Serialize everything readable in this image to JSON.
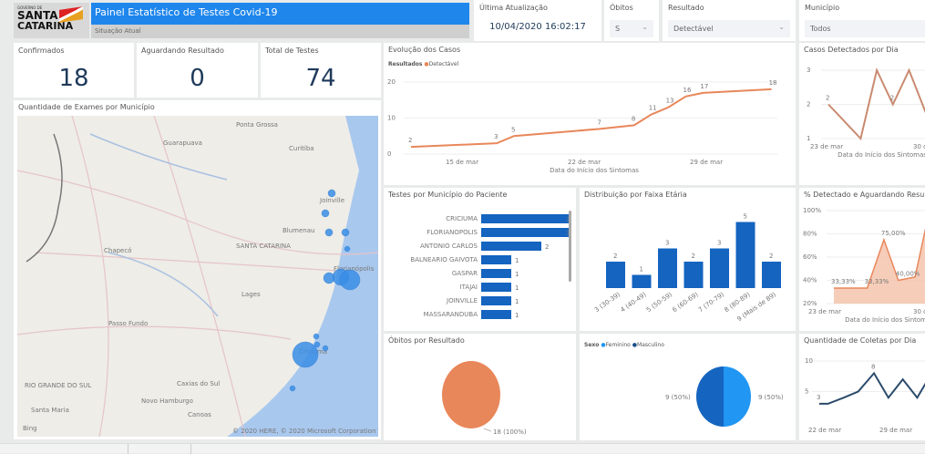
{
  "header": {
    "logo_top": "GOVERNO DE",
    "logo_line1": "SANTA",
    "logo_line2": "CATARINA",
    "title": "Painel Estatístico de Testes Covid-19",
    "subtitle": "Situação Atual"
  },
  "filters": {
    "last_update": {
      "label": "Última Atualização",
      "value": "10/04/2020 16:02:17"
    },
    "obitos": {
      "label": "Óbitos",
      "value": "S"
    },
    "resultado": {
      "label": "Resultado",
      "value": "Detectável"
    },
    "municipio": {
      "label": "Município",
      "value": "Todos"
    }
  },
  "kpis": [
    {
      "label": "Confirmados",
      "value": "18"
    },
    {
      "label": "Aguardando Resultado",
      "value": "0"
    },
    {
      "label": "Total de Testes",
      "value": "74"
    }
  ],
  "map": {
    "title": "Quantidade de Exames por Município",
    "places": [
      "Ponta Grossa",
      "Guarapuava",
      "Curitiba",
      "Joinville",
      "Blumenau",
      "SANTA CATARINA",
      "Chapecó",
      "Lages",
      "Passo Fundo",
      "Criciúma",
      "RIO GRANDE DO SUL",
      "Caxias do Sul",
      "Novo Hamburgo",
      "Santa Maria",
      "Canoas",
      "Florianópolis"
    ],
    "bing": "Bing",
    "copyright": "© 2020 HERE, © 2020 Microsoft Corporation  Terms",
    "bubble_color": "#3a8ee6"
  },
  "colors": {
    "accent": "#1f86ec",
    "orange": "#e8875a",
    "bar_blue": "#1464c0",
    "dark_blue": "#1a4f8a",
    "pie_dark": "#1565c0",
    "pie_light": "#2196f3",
    "line_dark": "#2b4a6b"
  },
  "chart_data": [
    {
      "id": "evolucao",
      "type": "line",
      "title": "Evolução dos Casos",
      "legend_title": "Resultados",
      "legend": [
        "Detectável"
      ],
      "xlabel": "Data do Início dos Sintomas",
      "x": [
        "12 mar",
        "17 mar",
        "18 mar",
        "23 mar",
        "25 mar",
        "26 mar",
        "27 mar",
        "28 mar",
        "29 mar",
        "2 abr"
      ],
      "values": [
        2,
        3,
        5,
        7,
        8,
        11,
        13,
        16,
        17,
        18
      ],
      "xticks": [
        "15 de mar",
        "22 de mar",
        "29 de mar"
      ],
      "yticks": [
        0,
        10,
        20
      ],
      "ylim": [
        0,
        20
      ]
    },
    {
      "id": "casos_dia",
      "type": "line",
      "title": "Casos Detectados por Dia",
      "xlabel": "Data do Início dos Sintomas",
      "x": [
        "23 mar",
        "25 mar",
        "26 mar",
        "27 mar",
        "28 mar",
        "30 mar",
        "31 mar"
      ],
      "values": [
        2,
        1,
        3,
        2,
        3,
        1,
        1
      ],
      "xticks": [
        "23 de mar",
        "30 de mar"
      ],
      "yticks": [
        1,
        2,
        3
      ],
      "ylim": [
        1,
        3
      ],
      "data_labels": [
        "2",
        "",
        "",
        "2",
        "",
        "",
        ""
      ]
    },
    {
      "id": "municipio",
      "type": "bar",
      "orientation": "horizontal",
      "title": "Testes por Município do Paciente",
      "categories": [
        "CRICIUMA",
        "FLORIANOPOLIS",
        "ANTONIO CARLOS",
        "BALNEARIO GAIVOTA",
        "GASPAR",
        "ITAJAI",
        "JOINVILLE",
        "MASSARANDUBA"
      ],
      "values": [
        3,
        3,
        2,
        1,
        1,
        1,
        1,
        1
      ]
    },
    {
      "id": "faixa",
      "type": "bar",
      "title": "Distribuição por Faixa Etária",
      "categories": [
        "3 (30-39)",
        "4 (40-49)",
        "5 (50-59)",
        "6 (60-69)",
        "7 (70-79)",
        "8 (80-89)",
        "9 (Mais de 89)"
      ],
      "values": [
        2,
        1,
        3,
        2,
        3,
        5,
        2
      ]
    },
    {
      "id": "pct",
      "type": "area",
      "title": "% Detectado e Aguardando Resultado",
      "xlabel": "Data do Início dos Sintomas",
      "x": [
        "23 mar",
        "25 mar",
        "26 mar",
        "27 mar",
        "28 mar",
        "29 mar",
        "31 mar"
      ],
      "values": [
        33.33,
        33.33,
        75,
        40,
        42.86,
        100,
        100
      ],
      "data_labels": [
        "33,33%",
        "33,33%",
        "75,00%",
        "40,00%",
        "",
        "100,00%",
        ""
      ],
      "xticks": [
        "23 de mar",
        "30 de mar"
      ],
      "yticks": [
        "20%",
        "40%",
        "60%",
        "80%",
        "100%"
      ],
      "ylim": [
        20,
        100
      ]
    },
    {
      "id": "obitos",
      "type": "pie",
      "title": "Óbitos por Resultado",
      "slices": [
        {
          "value": 18,
          "label": "18 (100%)"
        }
      ]
    },
    {
      "id": "sexo",
      "type": "pie",
      "legend_title": "Sexo",
      "legend": [
        "Feminino",
        "Masculino"
      ],
      "slices": [
        {
          "name": "Feminino",
          "value": 9,
          "label": "9 (50%)"
        },
        {
          "name": "Masculino",
          "value": 9,
          "label": "9 (50%)"
        }
      ]
    },
    {
      "id": "coletas",
      "type": "line",
      "title": "Quantidade de Coletas por Dia",
      "x": [
        "22 mar",
        "23 mar",
        "24 mar",
        "25 mar",
        "26 mar",
        "27 mar",
        "28 mar",
        "29 mar",
        "30 mar"
      ],
      "values": [
        3,
        3,
        4,
        5,
        8,
        4,
        7,
        4,
        8
      ],
      "data_labels": [
        "3",
        "",
        "",
        "",
        "8",
        "",
        "",
        "",
        "8"
      ],
      "xticks": [
        "22 de mar",
        "29 de mar"
      ],
      "yticks": [
        5,
        10
      ],
      "ylim": [
        0,
        10
      ]
    }
  ]
}
